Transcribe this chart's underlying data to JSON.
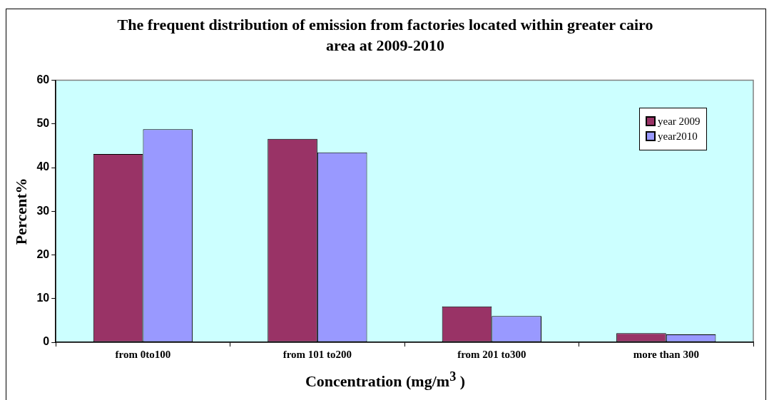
{
  "chart_data": {
    "type": "bar",
    "title": "The frequent distribution of emission from factories located within greater cairo area at 2009-2010",
    "xlabel": "Concentration (mg/m$^{3}$ )",
    "ylabel": "Percent%",
    "categories": [
      "from 0to100",
      "from 101 to200",
      "from 201 to300",
      "more than 300"
    ],
    "series": [
      {
        "name": "year 2009",
        "color": "#993366",
        "values": [
          43.1,
          46.6,
          8.2,
          2.1
        ]
      },
      {
        "name": "year2010",
        "color": "#9999ff",
        "values": [
          48.8,
          43.5,
          6.0,
          1.8
        ]
      }
    ],
    "ylim": [
      0,
      60
    ],
    "yticks": [
      0,
      10,
      20,
      30,
      40,
      50,
      60
    ],
    "grid": false,
    "legend": "top right"
  }
}
